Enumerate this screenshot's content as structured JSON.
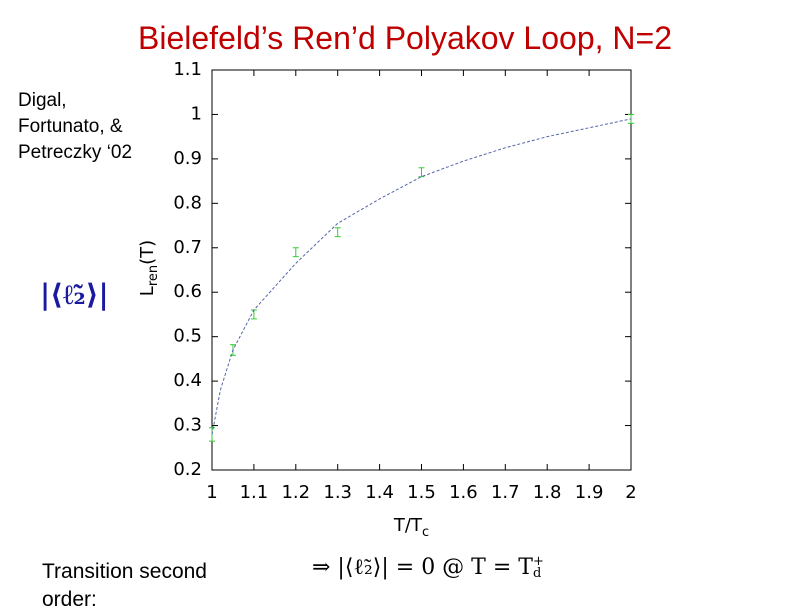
{
  "slide": {
    "title": "Bielefeld’s Ren’d Polyakov Loop, N=2",
    "citation": [
      "Digal,",
      "Fortunato, &",
      "Petreczky ‘02"
    ],
    "observable": "|⟨ℓ̃₂⟩|",
    "result": {
      "text": "⇒ |⟨ℓ̃₂⟩| = 0 @ T = T",
      "sub": "d",
      "sup": "+"
    },
    "footer": "Transition second order:"
  },
  "chart_data": {
    "type": "scatter",
    "x_label": {
      "main": "T/T",
      "sub": "c"
    },
    "y_label": {
      "main": "L",
      "sub": "ren",
      "tail": "(T)"
    },
    "xlim": [
      1,
      2
    ],
    "ylim": [
      0.2,
      1.1
    ],
    "xticks": [
      1,
      1.1,
      1.2,
      1.3,
      1.4,
      1.5,
      1.6,
      1.7,
      1.8,
      1.9,
      2
    ],
    "yticks": [
      0.2,
      0.3,
      0.4,
      0.5,
      0.6,
      0.7,
      0.8,
      0.9,
      1,
      1.1
    ],
    "series": [
      {
        "color": "#33cc33",
        "x": [
          1.0,
          1.05,
          1.1,
          1.2,
          1.3,
          1.5,
          2.0
        ],
        "values": [
          0.28,
          0.47,
          0.55,
          0.69,
          0.735,
          0.87,
          0.99
        ],
        "errors": [
          0.015,
          0.012,
          0.01,
          0.01,
          0.01,
          0.01,
          0.01
        ]
      },
      {
        "color": "#5566aa",
        "line": "dashed",
        "x": [
          1.0,
          1.02,
          1.05,
          1.1,
          1.2,
          1.3,
          1.4,
          1.5,
          1.6,
          1.7,
          1.8,
          1.9,
          2.0
        ],
        "values": [
          0.28,
          0.38,
          0.47,
          0.56,
          0.665,
          0.755,
          0.81,
          0.86,
          0.895,
          0.925,
          0.95,
          0.97,
          0.99
        ]
      }
    ]
  }
}
